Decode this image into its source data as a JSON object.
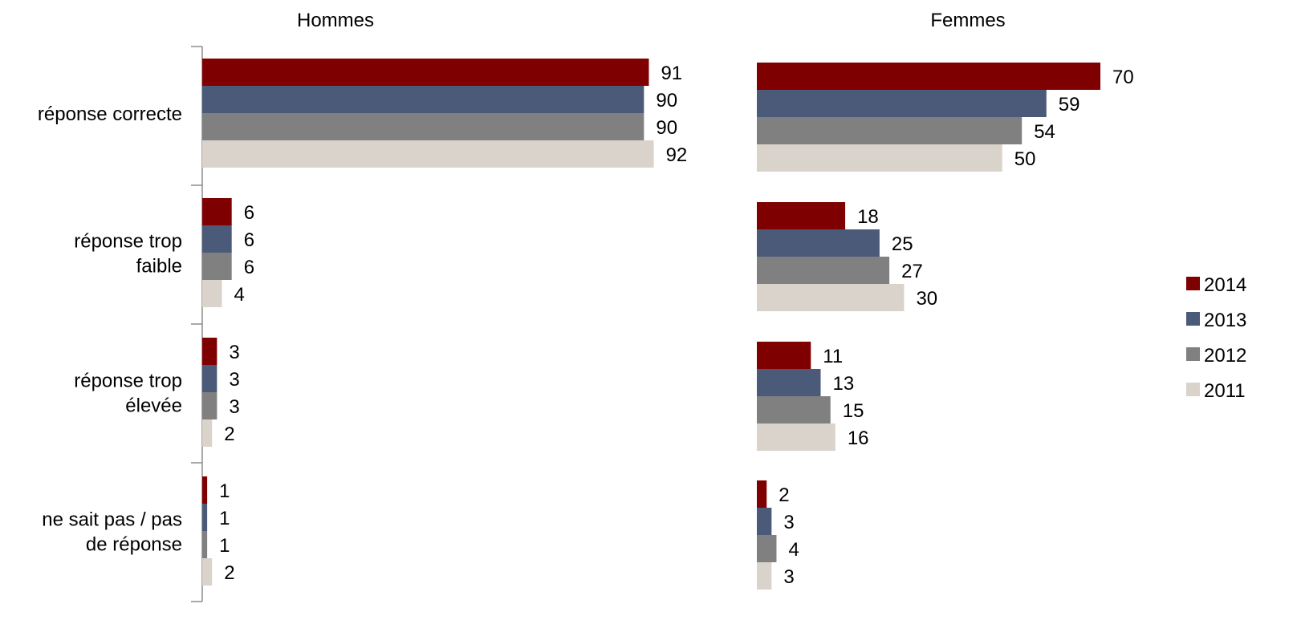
{
  "chart_data": {
    "type": "bar",
    "orientation": "horizontal",
    "categories": [
      "réponse correcte",
      "réponse trop faible",
      "réponse trop élevée",
      "ne sait pas /  pas de réponse"
    ],
    "category_lines": [
      [
        "réponse correcte"
      ],
      [
        "réponse trop",
        "faible"
      ],
      [
        "réponse trop",
        "élevée"
      ],
      [
        "ne sait pas /  pas",
        "de réponse"
      ]
    ],
    "panels": [
      {
        "title": "Hommes",
        "series": [
          {
            "name": "2014",
            "values": [
              91,
              6,
              3,
              1
            ]
          },
          {
            "name": "2013",
            "values": [
              90,
              6,
              3,
              1
            ]
          },
          {
            "name": "2012",
            "values": [
              90,
              6,
              3,
              1
            ]
          },
          {
            "name": "2011",
            "values": [
              92,
              4,
              2,
              2
            ]
          }
        ]
      },
      {
        "title": "Femmes",
        "series": [
          {
            "name": "2014",
            "values": [
              70,
              18,
              11,
              2
            ]
          },
          {
            "name": "2013",
            "values": [
              59,
              25,
              13,
              3
            ]
          },
          {
            "name": "2012",
            "values": [
              54,
              27,
              15,
              4
            ]
          },
          {
            "name": "2011",
            "values": [
              50,
              30,
              16,
              3
            ]
          }
        ]
      }
    ],
    "legend": {
      "placement": "right",
      "entries": [
        "2014",
        "2013",
        "2012",
        "2011"
      ]
    },
    "colors": {
      "2014": "#7f0000",
      "2013": "#4a5a78",
      "2012": "#808080",
      "2011": "#dad3cc"
    },
    "xlim": [
      0,
      100
    ],
    "grid": false
  }
}
